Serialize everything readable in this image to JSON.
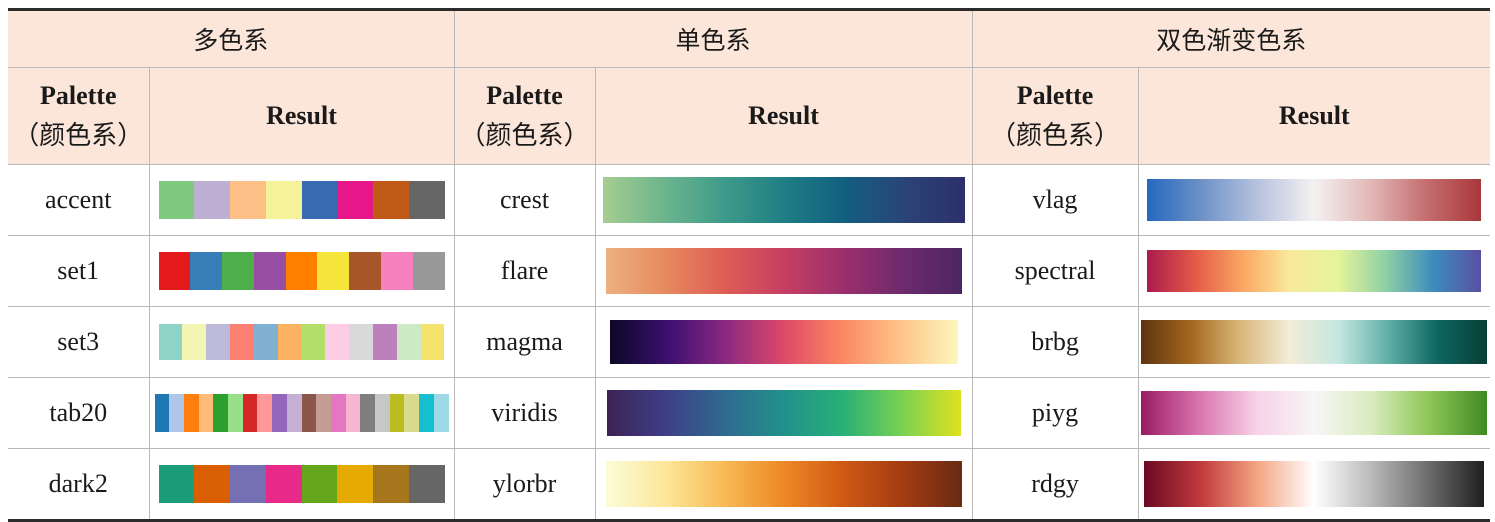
{
  "groups": [
    {
      "title": "多色系",
      "palette_label": "Palette",
      "palette_sub": "（颜色系）",
      "result_label": "Result"
    },
    {
      "title": "单色系",
      "palette_label": "Palette",
      "palette_sub": "（颜色系）",
      "result_label": "Result"
    },
    {
      "title": "双色渐变色系",
      "palette_label": "Palette",
      "palette_sub": "（颜色系）",
      "result_label": "Result"
    }
  ],
  "rows": [
    {
      "qual": {
        "name": "accent",
        "colors": [
          "#7fc97f",
          "#beaed4",
          "#fdc086",
          "#f5f29a",
          "#386cb0",
          "#e7178a",
          "#bf5b17",
          "#666666"
        ]
      },
      "seq": {
        "name": "crest",
        "colors": [
          "#a5cd90",
          "#6db58c",
          "#3e9b8a",
          "#1f7e85",
          "#135f80",
          "#2b4478",
          "#2c2f6b"
        ]
      },
      "div": {
        "name": "vlag",
        "colors": [
          "#2369bd",
          "#6f92c9",
          "#b7c3de",
          "#f4f1f1",
          "#e3b9b8",
          "#c56f70",
          "#a9373b"
        ]
      }
    },
    {
      "qual": {
        "name": "set1",
        "colors": [
          "#e41a1c",
          "#377eb8",
          "#4daf4a",
          "#984ea3",
          "#ff7f00",
          "#f5e43a",
          "#a65628",
          "#f781bf",
          "#999999"
        ]
      },
      "seq": {
        "name": "flare",
        "colors": [
          "#edb081",
          "#e68a5f",
          "#de5d55",
          "#c53f62",
          "#9b2f6c",
          "#6e2a6d",
          "#4b2661"
        ]
      },
      "div": {
        "name": "spectral",
        "colors": [
          "#ab1b4c",
          "#e35a48",
          "#fba662",
          "#f8ea9c",
          "#e6f49b",
          "#8fd0a4",
          "#3d8cbc",
          "#5a4fa2"
        ]
      }
    },
    {
      "qual": {
        "name": "set3",
        "colors": [
          "#8dd3c7",
          "#f5f5b3",
          "#bebada",
          "#fb8072",
          "#80b1d3",
          "#fdb462",
          "#b3de69",
          "#fccde5",
          "#d9d9d9",
          "#bc80bd",
          "#ccebc5",
          "#f5e36e"
        ]
      },
      "seq": {
        "name": "magma",
        "colors": [
          "#0c0826",
          "#3b0f70",
          "#8c2981",
          "#de4968",
          "#fb8761",
          "#fec488",
          "#fcf6bc"
        ]
      },
      "div": {
        "name": "brbg",
        "colors": [
          "#5e3411",
          "#a4661d",
          "#d9b779",
          "#f3ecd7",
          "#c4e7e1",
          "#5fb0a6",
          "#0e6661",
          "#073f35"
        ]
      }
    },
    {
      "qual": {
        "name": "tab20",
        "colors": [
          "#1f77b4",
          "#aec7e8",
          "#ff7f0e",
          "#ffbb78",
          "#2ca02c",
          "#98df8a",
          "#d62728",
          "#ff9896",
          "#9467bd",
          "#c5b0d5",
          "#8c564b",
          "#c49c94",
          "#e377c2",
          "#f7b6d2",
          "#7f7f7f",
          "#c7c7c7",
          "#bcbd22",
          "#dbdb8d",
          "#17becf",
          "#9edae5"
        ]
      },
      "seq": {
        "name": "viridis",
        "colors": [
          "#3c2254",
          "#3e3f87",
          "#2f6a8f",
          "#21918c",
          "#29b077",
          "#7ad151",
          "#e0e21e"
        ]
      },
      "div": {
        "name": "piyg",
        "colors": [
          "#9a1b64",
          "#d974ae",
          "#f7d2e7",
          "#f7f6f6",
          "#d8ecbf",
          "#8ec656",
          "#3f8a23"
        ]
      }
    },
    {
      "qual": {
        "name": "dark2",
        "colors": [
          "#1b9e77",
          "#d95f02",
          "#7570b3",
          "#e7298a",
          "#66a61e",
          "#e6ab02",
          "#a6761d",
          "#666666"
        ]
      },
      "seq": {
        "name": "ylorbr",
        "colors": [
          "#fdfbd8",
          "#fce798",
          "#f7b955",
          "#ed8825",
          "#cf5914",
          "#a33c12",
          "#6a2a14"
        ]
      },
      "div": {
        "name": "rdgy",
        "colors": [
          "#6a0a23",
          "#c0393d",
          "#f4a582",
          "#ffffff",
          "#bababa",
          "#6e6e6e",
          "#1e1e1e"
        ]
      }
    }
  ]
}
